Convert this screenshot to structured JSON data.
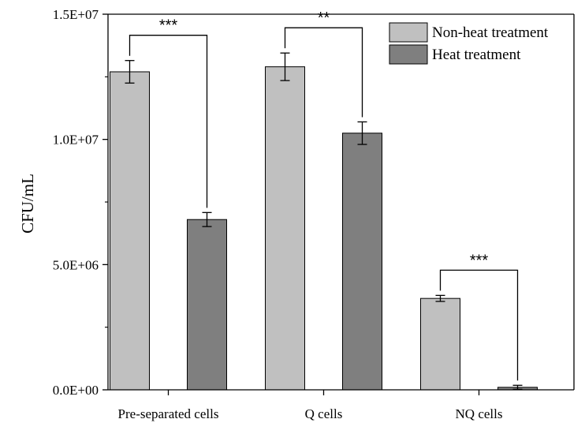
{
  "chart_data": {
    "type": "bar",
    "title": "",
    "xlabel": "",
    "ylabel": "CFU/mL",
    "ylim": [
      0,
      15000000
    ],
    "y_ticks": [
      "0.0E+00",
      "5.0E+06",
      "1.0E+07",
      "1.5E+07"
    ],
    "y_tick_values": [
      0,
      5000000,
      10000000,
      15000000
    ],
    "categories": [
      "Pre-separated cells",
      "Q cells",
      "NQ cells"
    ],
    "series": [
      {
        "name": "Non-heat treatment",
        "color": "#c0c0c0",
        "values": [
          12700000,
          12900000,
          3650000
        ],
        "errors": [
          450000,
          550000,
          120000
        ]
      },
      {
        "name": "Heat treatment",
        "color": "#7f7f7f",
        "values": [
          6800000,
          10250000,
          100000
        ],
        "errors": [
          280000,
          450000,
          80000
        ]
      }
    ],
    "significance": [
      "***",
      "**",
      "***"
    ],
    "legend_position": "top-right",
    "grid": false
  }
}
